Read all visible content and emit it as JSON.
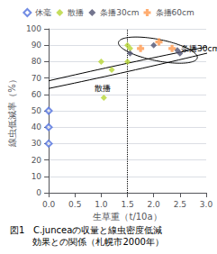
{
  "chart_data": {
    "type": "scatter",
    "caption": "図1   C.junceaの収量と線虫密度低減\n        効果との関係（札幌市2000年）",
    "xlabel": "生草重（t/10a）",
    "ylabel": "線虫低減率（%）",
    "xlim": [
      0,
      3.0
    ],
    "ylim": [
      0,
      100
    ],
    "xticks": [
      {
        "value": 0,
        "label": "0.0"
      },
      0.5,
      {
        "value": 1.0,
        "label": "1.0"
      },
      1.5,
      {
        "value": 2.0,
        "label": "2.0"
      },
      2.5,
      {
        "value": 3.0,
        "label": "3.0"
      }
    ],
    "yticks": [
      0,
      10,
      20,
      30,
      40,
      50,
      60,
      70,
      80,
      90,
      100
    ],
    "grid": "y",
    "legend": "top",
    "series": [
      {
        "name": "休毫",
        "marker": "open_diamond",
        "x": [
          0,
          0,
          0
        ],
        "values": [
          50,
          40,
          30
        ]
      },
      {
        "name": "散播",
        "marker": "diamond",
        "x": [
          1.0,
          1.05,
          1.2,
          1.5,
          1.55,
          1.5
        ],
        "values": [
          80,
          58,
          75,
          90,
          88,
          80
        ]
      },
      {
        "name": "条播30cm",
        "marker": "diamond",
        "x": [
          1.55,
          2.0,
          2.45,
          2.5
        ],
        "values": [
          85,
          90,
          87,
          85
        ]
      },
      {
        "name": "条播60cm",
        "marker": "plus",
        "x": [
          1.75,
          2.1,
          2.35
        ],
        "values": [
          88,
          92,
          88
        ]
      }
    ],
    "vline": 1.5,
    "ellipses": [
      {
        "cx": 1.15,
        "cy": 74,
        "width": 0.72,
        "height": 40,
        "angle": -8
      },
      {
        "cx": 2.08,
        "cy": 87,
        "width": 1.25,
        "height": 16,
        "angle": 3
      }
    ],
    "annotations": [
      {
        "text": "散播",
        "x": 0.88,
        "y": 64
      },
      {
        "text": "条播30cm",
        "x": 2.52,
        "y": 88
      }
    ]
  }
}
